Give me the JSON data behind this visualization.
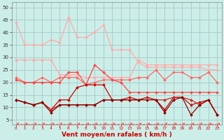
{
  "background_color": "#cceee8",
  "grid_color": "#aacccc",
  "xlabel": "Vent moyen/en rafales ( km/h )",
  "xlabel_color": "#cc0000",
  "xlabel_fontsize": 6.5,
  "yticks": [
    5,
    10,
    15,
    20,
    25,
    30,
    35,
    40,
    45,
    50
  ],
  "xticks": [
    0,
    1,
    2,
    3,
    4,
    5,
    6,
    7,
    8,
    9,
    10,
    11,
    12,
    13,
    14,
    15,
    16,
    17,
    18,
    19,
    20,
    21,
    22,
    23
  ],
  "ylim": [
    3,
    52
  ],
  "xlim": [
    -0.5,
    23.5
  ],
  "x": [
    0,
    1,
    2,
    3,
    4,
    5,
    6,
    7,
    8,
    9,
    10,
    11,
    12,
    13,
    14,
    15,
    16,
    17,
    18,
    19,
    20,
    21,
    22,
    23
  ],
  "series": [
    {
      "y": [
        44,
        35,
        35,
        35,
        37,
        36,
        46,
        38,
        38,
        40,
        43,
        33,
        33,
        33,
        28,
        26,
        26,
        26,
        26,
        26,
        26,
        26,
        25,
        25
      ],
      "color": "#ffaaaa",
      "marker": "D",
      "markersize": 2.0,
      "linewidth": 0.9,
      "connect_all": true
    },
    {
      "y": [
        29,
        29,
        29,
        29,
        29,
        23,
        23,
        23,
        22,
        22,
        22,
        22,
        22,
        22,
        29,
        27,
        27,
        27,
        27,
        27,
        27,
        27,
        27,
        27
      ],
      "color": "#ffaaaa",
      "marker": "D",
      "markersize": 2.0,
      "linewidth": 0.9,
      "connect_all": true
    },
    {
      "y": [
        22,
        20,
        20,
        22,
        20,
        22,
        22,
        22,
        19,
        20,
        21,
        21,
        21,
        21,
        22,
        22,
        25,
        21,
        24,
        24,
        22,
        22,
        24,
        20
      ],
      "color": "#ff6666",
      "marker": "D",
      "markersize": 2.0,
      "linewidth": 0.9,
      "connect_all": true
    },
    {
      "y": [
        21,
        20,
        20,
        20,
        20,
        20,
        24,
        24,
        19,
        27,
        24,
        21,
        20,
        16,
        16,
        16,
        16,
        16,
        16,
        16,
        16,
        16,
        16,
        16
      ],
      "color": "#ff4444",
      "marker": "D",
      "markersize": 2.0,
      "linewidth": 0.9,
      "connect_all": true
    },
    {
      "y": [
        13,
        12,
        11,
        12,
        9,
        13,
        13,
        18,
        19,
        19,
        19,
        13,
        13,
        14,
        13,
        14,
        13,
        9,
        14,
        14,
        11,
        12,
        13,
        7
      ],
      "color": "#cc0000",
      "marker": "D",
      "markersize": 2.0,
      "linewidth": 0.9,
      "connect_all": true
    },
    {
      "y": [
        13,
        12,
        11,
        12,
        9,
        11,
        11,
        11,
        11,
        11,
        13,
        13,
        13,
        13,
        13,
        14,
        13,
        13,
        14,
        14,
        13,
        11,
        13,
        7
      ],
      "color": "#cc2222",
      "marker": "D",
      "markersize": 2.0,
      "linewidth": 0.9,
      "connect_all": true
    },
    {
      "y": [
        13,
        12,
        11,
        12,
        8,
        11,
        11,
        11,
        11,
        11,
        13,
        13,
        13,
        13,
        13,
        13,
        13,
        8,
        13,
        14,
        7,
        11,
        13,
        7
      ],
      "color": "#880000",
      "marker": "D",
      "markersize": 2.0,
      "linewidth": 0.9,
      "connect_all": true
    },
    {
      "y": [
        3.5,
        3.5,
        3.5,
        3.5,
        3.5,
        3.5,
        3.5,
        3.5,
        3.5,
        3.5,
        3.5,
        3.5,
        3.5,
        3.5,
        3.5,
        3.5,
        3.5,
        3.5,
        3.5,
        3.5,
        3.5,
        3.5,
        3.5,
        3.5
      ],
      "color": "#ff6666",
      "marker": 4,
      "markersize": 3.5,
      "linewidth": 0.7,
      "linestyle": "--",
      "connect_all": true
    }
  ]
}
